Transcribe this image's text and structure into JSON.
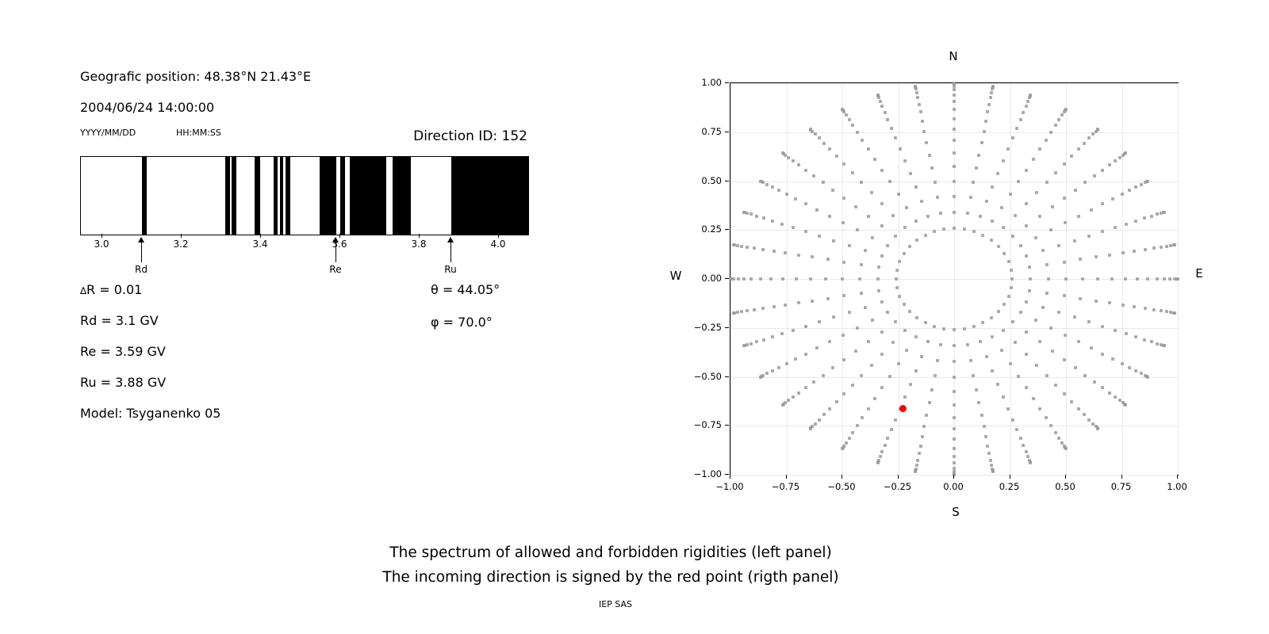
{
  "left_panel": {
    "geo_position": "Geografic position: 48.38°N 21.43°E",
    "datetime": "2004/06/24 14:00:00",
    "date_format_hint": "YYYY/MM/DD",
    "time_format_hint": "HH:MM:SS",
    "direction_id": "Direction ID: 152",
    "annotations": {
      "delta_symbol": "∆",
      "delta_rest": "R = 0.01",
      "rd": "Rd = 3.1 GV",
      "re": "Re = 3.59 GV",
      "ru": "Ru = 3.88 GV",
      "model": "Model: Tsyganenko 05",
      "theta": "θ = 44.05°",
      "phi": "φ = 70.0°"
    }
  },
  "caption": {
    "line1": "The spectrum of allowed and forbidden rigidities (left panel)",
    "line2": "The incoming direction is signed by the red point (rigth panel)",
    "credit": "IEP SAS"
  },
  "chart_data": [
    {
      "type": "barcode",
      "title": "Spectrum of allowed (white) and forbidden (black) rigidities",
      "x_range_gv": [
        2.946,
        4.074
      ],
      "x_ticks": [
        3.0,
        3.2,
        3.4,
        3.6,
        3.8,
        4.0
      ],
      "tick_decimals": 1,
      "black_bands_gv": [
        [
          3.1,
          3.111
        ],
        [
          3.31,
          3.322
        ],
        [
          3.326,
          3.338
        ],
        [
          3.384,
          3.398
        ],
        [
          3.432,
          3.442
        ],
        [
          3.448,
          3.456
        ],
        [
          3.462,
          3.474
        ],
        [
          3.548,
          3.59
        ],
        [
          3.6,
          3.612
        ],
        [
          3.624,
          3.716
        ],
        [
          3.732,
          3.778
        ],
        [
          3.88,
          4.074
        ]
      ],
      "markers": [
        {
          "label": "Rd",
          "value_gv": 3.1
        },
        {
          "label": "Re",
          "value_gv": 3.59
        },
        {
          "label": "Ru",
          "value_gv": 3.88
        }
      ],
      "delta_r_gv": 0.01
    },
    {
      "type": "scatter",
      "title": "Sky map of viewing directions; incoming direction marked by red point",
      "xlim": [
        -1.0,
        1.0
      ],
      "ylim": [
        -1.0,
        1.0
      ],
      "x_ticks": [
        -1.0,
        -0.75,
        -0.5,
        -0.25,
        0.0,
        0.25,
        0.5,
        0.75,
        1.0
      ],
      "y_ticks": [
        -1.0,
        -0.75,
        -0.5,
        -0.25,
        0.0,
        0.25,
        0.5,
        0.75,
        1.0
      ],
      "tick_decimals": 2,
      "grid": true,
      "compass_labels": {
        "top": "N",
        "right": "E",
        "bottom": "S",
        "left": "W"
      },
      "grey_dots": {
        "generator": "x = sin(zenith)*sin(azimuth), y = sin(zenith)*cos(azimuth)",
        "azimuth_start_deg": 0,
        "azimuth_step_deg": 10,
        "azimuth_count": 36,
        "zenith_start_deg": 15,
        "zenith_step_deg": 5,
        "zenith_count": 16,
        "inner_radius": 0.259,
        "outer_radius": 1.0,
        "color": "#9a9a9a"
      },
      "red_point": {
        "x": -0.23,
        "y": -0.66,
        "color": "#ff0000"
      }
    }
  ]
}
